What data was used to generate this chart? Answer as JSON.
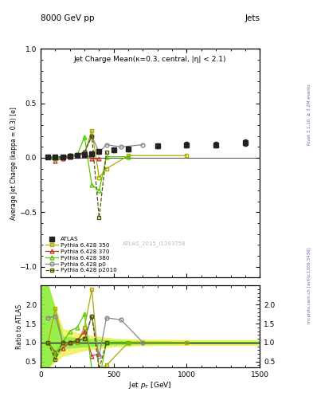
{
  "title_top": "8000 GeV pp",
  "title_right": "Jets",
  "main_title": "Jet Charge Mean(κ=0.3, central, |η| < 2.1)",
  "watermark": "ATLAS_2015_I1393758",
  "rivet_label": "Rivet 3.1.10, ≥ 3.2M events",
  "mcplots_label": "mcplots.cern.ch [arXiv:1306.3436]",
  "ylabel_main": "Average Jet Charge (kappa = 0.3) [e]",
  "ylabel_ratio": "Ratio to ATLAS",
  "xlabel": "Jet p_{T} [GeV]",
  "xlim": [
    0,
    1500
  ],
  "ylim_main": [
    -1.1,
    1.0
  ],
  "ylim_ratio": [
    0.35,
    2.5
  ],
  "atlas_x": [
    50,
    100,
    150,
    200,
    250,
    300,
    350,
    400,
    500,
    600,
    800,
    1000,
    1200,
    1400
  ],
  "atlas_y": [
    0.005,
    0.005,
    0.01,
    0.015,
    0.02,
    0.03,
    0.04,
    0.06,
    0.07,
    0.08,
    0.11,
    0.12,
    0.12,
    0.14
  ],
  "atlas_yerr_lo": [
    0.01,
    0.01,
    0.01,
    0.01,
    0.01,
    0.01,
    0.01,
    0.015,
    0.02,
    0.025,
    0.025,
    0.025,
    0.025,
    0.03
  ],
  "atlas_yerr_hi": [
    0.01,
    0.01,
    0.01,
    0.01,
    0.01,
    0.01,
    0.01,
    0.015,
    0.02,
    0.025,
    0.025,
    0.025,
    0.025,
    0.03
  ],
  "py350_x": [
    50,
    100,
    150,
    200,
    250,
    300,
    350,
    400,
    450,
    600,
    1000
  ],
  "py350_y": [
    0.005,
    0.005,
    0.01,
    0.015,
    0.02,
    0.04,
    0.25,
    -0.18,
    -0.1,
    0.02,
    0.02
  ],
  "py370_x": [
    50,
    100,
    150,
    200,
    250,
    300,
    350,
    400
  ],
  "py370_y": [
    0.005,
    -0.03,
    -0.005,
    0.01,
    0.02,
    0.04,
    -0.01,
    -0.01
  ],
  "py380_x": [
    50,
    100,
    150,
    200,
    250,
    300,
    350,
    400,
    450,
    600
  ],
  "py380_y": [
    0.005,
    -0.01,
    0.01,
    0.015,
    0.025,
    0.19,
    -0.25,
    -0.3,
    0.01,
    0.01
  ],
  "pyp0_x": [
    50,
    100,
    150,
    200,
    250,
    300,
    350,
    400,
    450,
    550,
    700
  ],
  "pyp0_y": [
    0.005,
    0.005,
    0.01,
    0.02,
    0.03,
    0.05,
    0.2,
    0.05,
    0.12,
    0.1,
    0.12
  ],
  "pyp2010_x": [
    50,
    100,
    150,
    200,
    250,
    300,
    350,
    400,
    450
  ],
  "pyp2010_y": [
    0.005,
    0.005,
    0.01,
    0.02,
    0.03,
    0.05,
    0.2,
    -0.55,
    0.05
  ],
  "ratio_py350_x": [
    50,
    100,
    150,
    200,
    250,
    300,
    350,
    400,
    450,
    600,
    1000
  ],
  "ratio_py350_y": [
    1.0,
    1.9,
    1.0,
    1.0,
    1.0,
    1.4,
    2.4,
    0.3,
    0.4,
    1.0,
    1.0
  ],
  "ratio_py370_x": [
    50,
    100,
    150,
    200,
    250,
    300,
    350,
    400
  ],
  "ratio_py370_y": [
    1.0,
    0.75,
    0.85,
    1.0,
    1.05,
    1.3,
    0.65,
    0.7
  ],
  "ratio_py380_x": [
    50,
    100,
    150,
    200,
    250,
    300,
    350,
    400,
    450,
    600
  ],
  "ratio_py380_y": [
    1.0,
    0.7,
    1.0,
    1.3,
    1.4,
    1.75,
    0.3,
    0.0,
    1.0,
    1.0
  ],
  "ratio_pyp0_x": [
    50,
    100,
    150,
    200,
    250,
    300,
    350,
    400,
    450,
    550,
    700
  ],
  "ratio_pyp0_y": [
    1.65,
    1.7,
    1.0,
    1.0,
    1.05,
    1.1,
    1.7,
    0.65,
    1.65,
    1.6,
    1.0
  ],
  "ratio_pyp2010_x": [
    50,
    100,
    150,
    200,
    250,
    300,
    350,
    400,
    450
  ],
  "ratio_pyp2010_y": [
    1.0,
    0.55,
    1.0,
    1.0,
    1.05,
    1.1,
    1.7,
    0.3,
    1.0
  ],
  "band_yellow_x": [
    0,
    50,
    150,
    300,
    500,
    700,
    1000,
    1500
  ],
  "band_yellow_upper": [
    2.5,
    2.5,
    1.35,
    1.2,
    1.1,
    1.07,
    1.06,
    1.06
  ],
  "band_yellow_lower": [
    0.35,
    0.35,
    0.65,
    0.8,
    0.9,
    0.93,
    0.94,
    0.94
  ],
  "band_green_x": [
    0,
    50,
    150,
    300,
    500,
    700,
    1000,
    1500
  ],
  "band_green_upper": [
    2.5,
    2.5,
    1.15,
    1.1,
    1.05,
    1.03,
    1.02,
    1.02
  ],
  "band_green_lower": [
    0.35,
    0.35,
    0.85,
    0.9,
    0.95,
    0.97,
    0.98,
    0.98
  ],
  "color_atlas": "#222222",
  "color_py350": "#aaaa00",
  "color_py370": "#cc3333",
  "color_py380": "#55cc00",
  "color_pyp0": "#888888",
  "color_pyp2010": "#555500",
  "color_band_green": "#88ee44",
  "color_band_yellow": "#eeee44"
}
